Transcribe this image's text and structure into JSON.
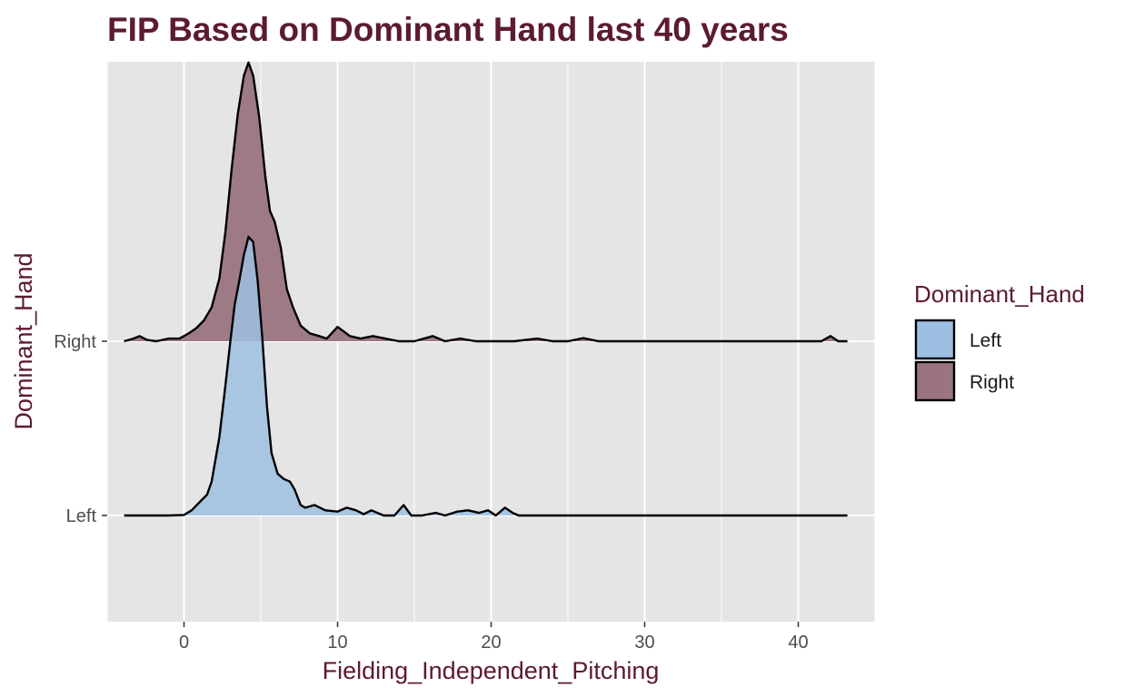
{
  "chart_data": {
    "type": "area",
    "subtype": "ridgeline-density",
    "title": "FIP Based on Dominant Hand last 40 years",
    "xlabel": "Fielding_Independent_Pitching",
    "ylabel": "Dominant_Hand",
    "xlim": [
      -5,
      45
    ],
    "x_ticks": [
      0,
      10,
      20,
      30,
      40
    ],
    "y_categories": [
      "Left",
      "Right"
    ],
    "grid": true,
    "legend_position": "right",
    "legend": {
      "title": "Dominant_Hand",
      "entries": [
        "Left",
        "Right"
      ]
    },
    "series": [
      {
        "name": "Left",
        "color": "#9ebfe2",
        "baseline_category": "Left",
        "points": [
          [
            -3.9,
            0
          ],
          [
            -1,
            0
          ],
          [
            0,
            0.002
          ],
          [
            0.5,
            0.02
          ],
          [
            1,
            0.05
          ],
          [
            1.5,
            0.08
          ],
          [
            1.8,
            0.13
          ],
          [
            2.3,
            0.3
          ],
          [
            2.7,
            0.5
          ],
          [
            3.0,
            0.66
          ],
          [
            3.3,
            0.81
          ],
          [
            3.6,
            0.9
          ],
          [
            3.9,
            1.0
          ],
          [
            4.2,
            1.07
          ],
          [
            4.5,
            1.05
          ],
          [
            4.8,
            0.9
          ],
          [
            5.1,
            0.68
          ],
          [
            5.4,
            0.42
          ],
          [
            5.7,
            0.24
          ],
          [
            6.1,
            0.16
          ],
          [
            6.5,
            0.14
          ],
          [
            6.9,
            0.13
          ],
          [
            7.2,
            0.1
          ],
          [
            7.6,
            0.04
          ],
          [
            7.9,
            0.03
          ],
          [
            8.5,
            0.04
          ],
          [
            9.2,
            0.02
          ],
          [
            10.0,
            0.015
          ],
          [
            10.6,
            0.03
          ],
          [
            11.2,
            0.02
          ],
          [
            11.7,
            0.005
          ],
          [
            12.2,
            0.02
          ],
          [
            13,
            0.0
          ],
          [
            13.7,
            0.0
          ],
          [
            14.3,
            0.04
          ],
          [
            14.8,
            0.0
          ],
          [
            15.5,
            0.0
          ],
          [
            16.4,
            0.01
          ],
          [
            17,
            0.0
          ],
          [
            17.8,
            0.015
          ],
          [
            18.5,
            0.02
          ],
          [
            19.2,
            0.01
          ],
          [
            19.8,
            0.02
          ],
          [
            20.3,
            0.0
          ],
          [
            20.9,
            0.03
          ],
          [
            21.4,
            0.01
          ],
          [
            21.8,
            0.0
          ],
          [
            43.2,
            0.0
          ]
        ]
      },
      {
        "name": "Right",
        "color": "#9a7480",
        "baseline_category": "Right",
        "points": [
          [
            -3.9,
            0
          ],
          [
            -3.3,
            0.01
          ],
          [
            -2.9,
            0.02
          ],
          [
            -2.4,
            0.005
          ],
          [
            -1.8,
            0.0
          ],
          [
            -1.0,
            0.01
          ],
          [
            -0.3,
            0.01
          ],
          [
            0.3,
            0.03
          ],
          [
            0.8,
            0.05
          ],
          [
            1.3,
            0.08
          ],
          [
            1.8,
            0.13
          ],
          [
            2.3,
            0.24
          ],
          [
            2.7,
            0.42
          ],
          [
            3.1,
            0.66
          ],
          [
            3.5,
            0.87
          ],
          [
            3.9,
            1.02
          ],
          [
            4.2,
            1.07
          ],
          [
            4.5,
            1.02
          ],
          [
            4.9,
            0.86
          ],
          [
            5.3,
            0.63
          ],
          [
            5.6,
            0.5
          ],
          [
            5.9,
            0.46
          ],
          [
            6.3,
            0.36
          ],
          [
            6.7,
            0.2
          ],
          [
            7.1,
            0.13
          ],
          [
            7.6,
            0.06
          ],
          [
            8.2,
            0.03
          ],
          [
            8.8,
            0.02
          ],
          [
            9.3,
            0.01
          ],
          [
            10.0,
            0.055
          ],
          [
            10.8,
            0.02
          ],
          [
            11.5,
            0.01
          ],
          [
            12.3,
            0.02
          ],
          [
            13.1,
            0.01
          ],
          [
            14.0,
            0.0
          ],
          [
            15.0,
            0.0
          ],
          [
            16.2,
            0.02
          ],
          [
            17.0,
            0.0
          ],
          [
            18.0,
            0.01
          ],
          [
            19.0,
            0.0
          ],
          [
            20.0,
            0.0
          ],
          [
            21.5,
            0.0
          ],
          [
            23.0,
            0.01
          ],
          [
            24.0,
            0.0
          ],
          [
            25.0,
            0.0
          ],
          [
            26.0,
            0.012
          ],
          [
            27.0,
            0.0
          ],
          [
            41.5,
            0.0
          ],
          [
            42.1,
            0.02
          ],
          [
            42.6,
            0.0
          ],
          [
            43.2,
            0.0
          ]
        ]
      }
    ]
  }
}
